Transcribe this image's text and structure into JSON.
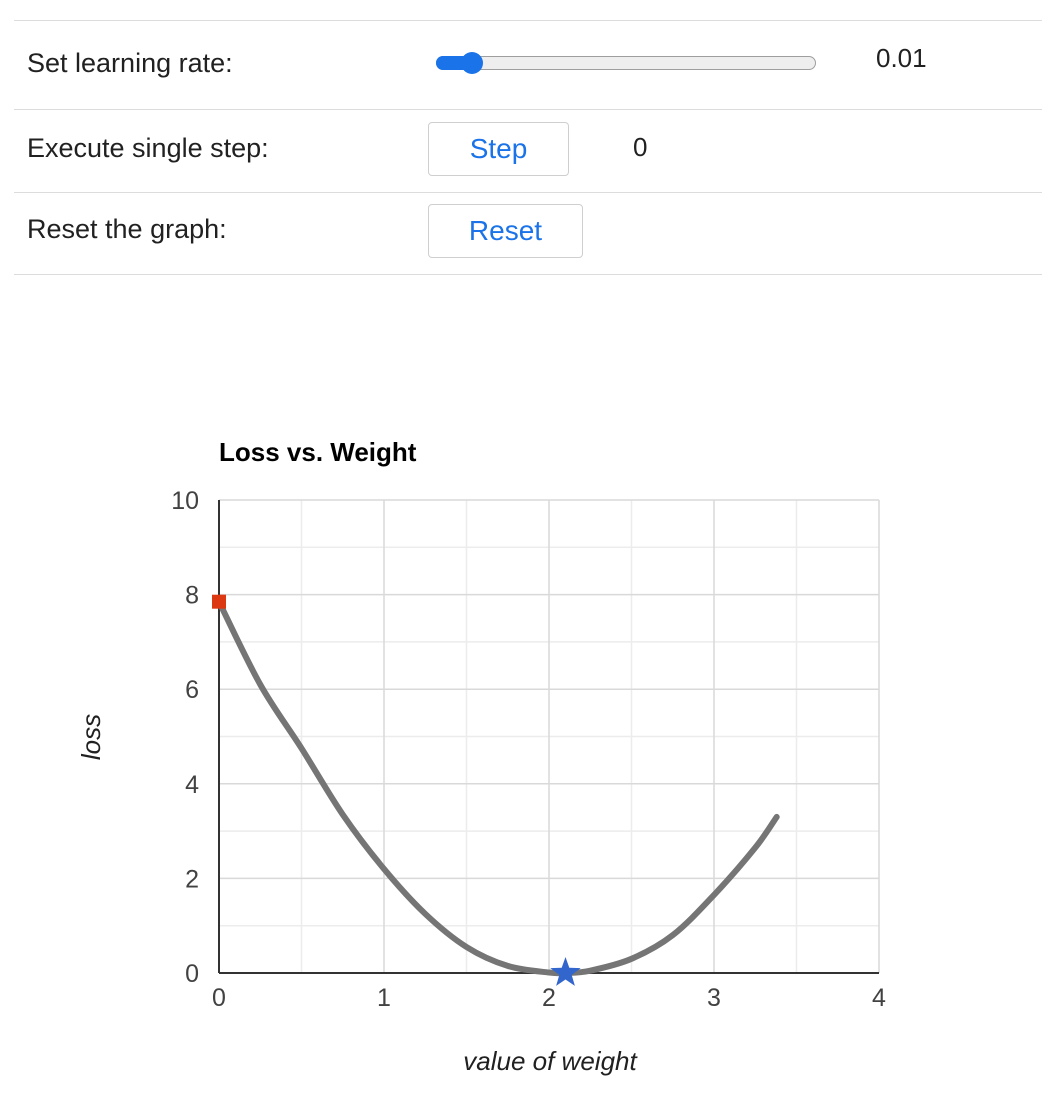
{
  "controls": {
    "learning_rate_label": "Set learning rate:",
    "learning_rate_value": "0.01",
    "learning_rate_fraction": 0.07,
    "step_label": "Execute single step:",
    "step_button": "Step",
    "step_count": "0",
    "reset_label": "Reset the graph:",
    "reset_button": "Reset"
  },
  "colors": {
    "accent": "#1a73e8",
    "curve": "#757575",
    "start_marker": "#dc3912",
    "min_marker": "#3366cc",
    "grid": "#d9d9d9",
    "minor_grid": "#ececec"
  },
  "chart_data": {
    "type": "line",
    "title": "Loss vs. Weight",
    "xlabel": "value of weight",
    "ylabel": "loss",
    "xlim": [
      0,
      4
    ],
    "ylim": [
      0,
      10
    ],
    "x_ticks": [
      "0",
      "1",
      "2",
      "3",
      "4"
    ],
    "y_ticks": [
      "0",
      "2",
      "4",
      "6",
      "8",
      "10"
    ],
    "grid": true,
    "curve": {
      "x": [
        0,
        0.25,
        0.5,
        0.75,
        1,
        1.25,
        1.5,
        1.75,
        2,
        2.1,
        2.25,
        2.5,
        2.75,
        3,
        3.25,
        3.38
      ],
      "y": [
        7.85,
        6.1,
        4.75,
        3.35,
        2.2,
        1.25,
        0.55,
        0.15,
        0.01,
        0,
        0.05,
        0.3,
        0.8,
        1.65,
        2.65,
        3.3
      ]
    },
    "start_point": {
      "x": 0,
      "y": 7.85
    },
    "minimum_point": {
      "x": 2.1,
      "y": 0
    }
  }
}
